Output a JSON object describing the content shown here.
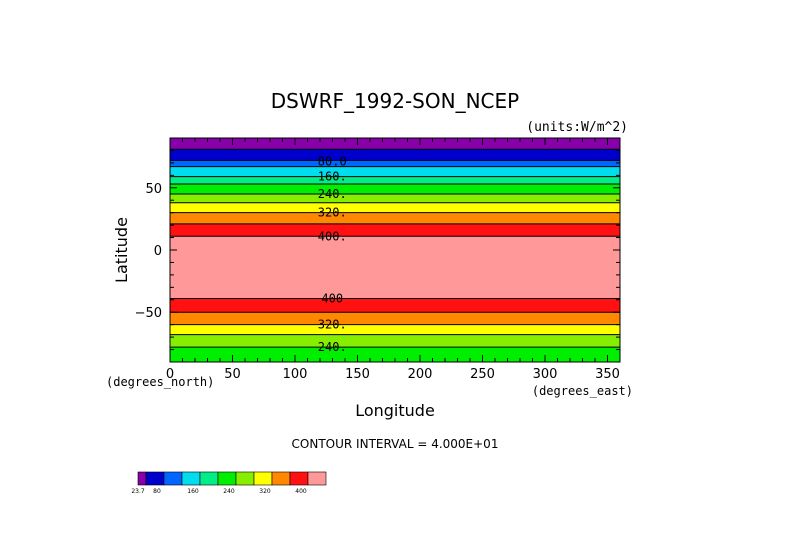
{
  "chart_data": {
    "type": "heatmap",
    "title": "DSWRF_1992-SON_NCEP",
    "units": "(units:W/m^2)",
    "xlabel": "Longitude",
    "ylabel": "Latitude",
    "x_unit_label": "(degrees_east)",
    "y_unit_label": "(degrees_north)",
    "xlim": [
      0,
      360
    ],
    "ylim": [
      -90,
      90
    ],
    "x_ticks": [
      0,
      50,
      100,
      150,
      200,
      250,
      300,
      350
    ],
    "x_tick_labels": [
      "0",
      "50",
      "100",
      "150",
      "200",
      "250",
      "300",
      "350"
    ],
    "y_ticks": [
      50,
      0,
      -50
    ],
    "y_tick_labels": [
      "50",
      "0",
      "−50"
    ],
    "contour_interval_text": "CONTOUR INTERVAL = 4.000E+01",
    "bands": [
      {
        "lat_from": 81,
        "lat_to": 90,
        "color": "#8800aa"
      },
      {
        "lat_from": 72,
        "lat_to": 81,
        "color": "#0000cc"
      },
      {
        "lat_from": 67,
        "lat_to": 72,
        "color": "#0066ff"
      },
      {
        "lat_from": 59,
        "lat_to": 67,
        "color": "#00ddee"
      },
      {
        "lat_from": 53,
        "lat_to": 59,
        "color": "#00ee88"
      },
      {
        "lat_from": 45,
        "lat_to": 53,
        "color": "#00ee00"
      },
      {
        "lat_from": 38,
        "lat_to": 45,
        "color": "#88ee00"
      },
      {
        "lat_from": 30,
        "lat_to": 38,
        "color": "#ffff00"
      },
      {
        "lat_from": 21,
        "lat_to": 30,
        "color": "#ff8800"
      },
      {
        "lat_from": 11,
        "lat_to": 21,
        "color": "#ff1111"
      },
      {
        "lat_from": -39,
        "lat_to": 11,
        "color": "#ff9999"
      },
      {
        "lat_from": -50,
        "lat_to": -39,
        "color": "#ff1111"
      },
      {
        "lat_from": -60,
        "lat_to": -50,
        "color": "#ff8800"
      },
      {
        "lat_from": -68,
        "lat_to": -60,
        "color": "#ffff00"
      },
      {
        "lat_from": -78,
        "lat_to": -68,
        "color": "#88ee00"
      },
      {
        "lat_from": -90,
        "lat_to": -78,
        "color": "#00ee00"
      }
    ],
    "contour_labels": [
      {
        "text": "80.0",
        "lon": 125,
        "lat": 71
      },
      {
        "text": "160.",
        "lon": 125,
        "lat": 59
      },
      {
        "text": "240.",
        "lon": 125,
        "lat": 45
      },
      {
        "text": "320.",
        "lon": 125,
        "lat": 30
      },
      {
        "text": "400.",
        "lon": 125,
        "lat": 11
      },
      {
        "text": "400",
        "lon": 125,
        "lat": -39
      },
      {
        "text": "320.",
        "lon": 125,
        "lat": -60
      },
      {
        "text": "240.",
        "lon": 125,
        "lat": -78
      }
    ],
    "colorbar": {
      "colors": [
        "#8800aa",
        "#0000cc",
        "#0066ff",
        "#00ddee",
        "#00ee88",
        "#00ee00",
        "#88ee00",
        "#ffff00",
        "#ff8800",
        "#ff1111",
        "#ff9999"
      ],
      "labels": [
        {
          "text": "23.7",
          "index": 0
        },
        {
          "text": "80",
          "index": 1
        },
        {
          "text": "160",
          "index": 3
        },
        {
          "text": "240",
          "index": 5
        },
        {
          "text": "320",
          "index": 7
        },
        {
          "text": "400",
          "index": 9
        }
      ]
    }
  }
}
